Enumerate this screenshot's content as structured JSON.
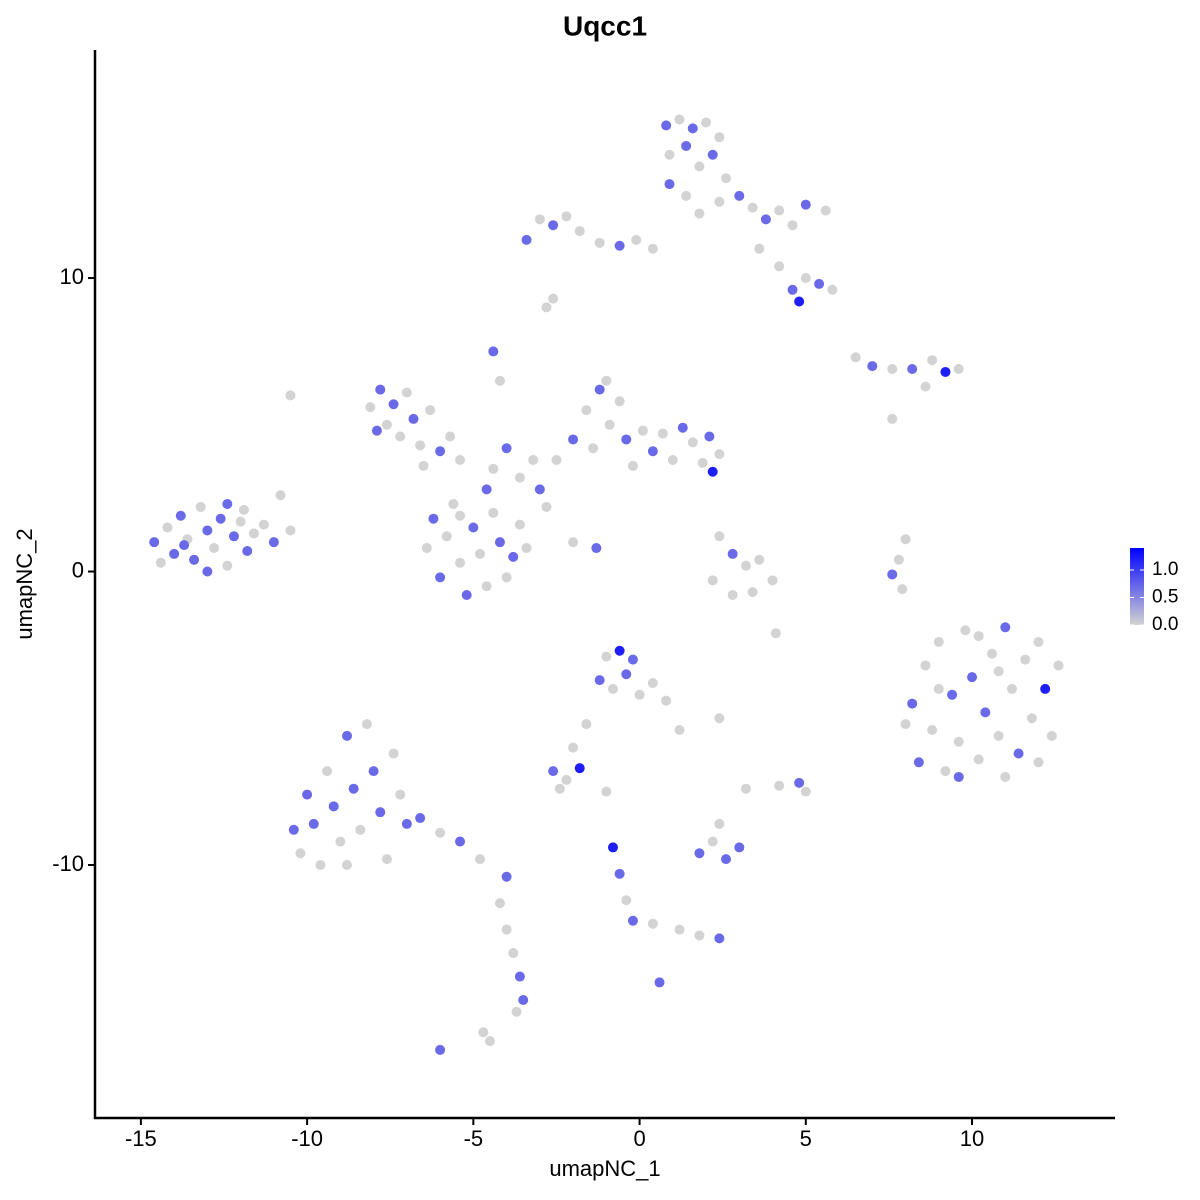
{
  "chart_data": {
    "type": "scatter",
    "title": "Uqcc1",
    "xlabel": "umapNC_1",
    "ylabel": "umapNC_2",
    "xlim": [
      -16.38,
      14.3
    ],
    "ylim": [
      -18.62,
      17.77
    ],
    "xticks": [
      -15,
      -10,
      -5,
      0,
      5,
      10
    ],
    "yticks": [
      -10,
      0,
      10
    ],
    "color_low": "#d3d3d3",
    "color_high": "#0000ff",
    "colorbar_lim": [
      0,
      1.4
    ],
    "colorbar_ticks": [
      {
        "value": 0,
        "label": "0.0"
      },
      {
        "value": 0.5,
        "label": "0.5"
      },
      {
        "value": 1,
        "label": "1.0"
      }
    ],
    "x": [
      -14.6,
      -14.2,
      -14.0,
      -13.8,
      -13.6,
      -13.4,
      -13.2,
      -13.0,
      -12.8,
      -12.6,
      -12.4,
      -12.2,
      -12.0,
      -11.8,
      -11.6,
      -11.3,
      -11.0,
      -10.8,
      -10.5,
      -14.4,
      -13.0,
      -12.4,
      -11.9,
      -13.7,
      -8.1,
      -7.8,
      -7.6,
      -7.4,
      -7.2,
      -7.0,
      -6.8,
      -6.6,
      -6.3,
      -6.0,
      -5.7,
      -5.4,
      -7.9,
      -6.5,
      -6.4,
      -6.2,
      -6.0,
      -5.8,
      -5.6,
      -5.4,
      -5.2,
      -5.0,
      -4.8,
      -4.6,
      -4.4,
      -4.2,
      -4.0,
      -3.8,
      -3.6,
      -3.4,
      -5.4,
      -4.6,
      -4.4,
      -4.0,
      -3.6,
      -3.2,
      -3.0,
      -4.2,
      -4.4,
      -2.8,
      -2.0,
      -1.3,
      -2.5,
      -2.0,
      -1.6,
      -1.4,
      -1.2,
      -0.9,
      -0.6,
      -0.4,
      -0.2,
      0.1,
      0.4,
      0.7,
      1.0,
      1.3,
      1.6,
      1.9,
      2.1,
      2.4,
      2.2,
      -1.0,
      0.8,
      1.2,
      1.6,
      2.0,
      2.4,
      0.9,
      1.4,
      1.8,
      2.2,
      0.9,
      1.4,
      1.8,
      2.4,
      2.6,
      3.0,
      3.4,
      3.8,
      4.2,
      4.6,
      5.0,
      5.6,
      3.6,
      4.2,
      4.6,
      5.0,
      5.4,
      5.8,
      4.8,
      -3.4,
      -3.0,
      -2.6,
      -2.2,
      -1.8,
      -1.2,
      -0.6,
      -0.1,
      0.4,
      -2.8,
      6.5,
      7.0,
      7.6,
      8.2,
      8.8,
      9.2,
      9.6,
      8.6,
      2.4,
      2.8,
      3.2,
      3.6,
      4.0,
      2.2,
      2.8,
      3.4,
      8.0,
      7.8,
      7.6,
      7.9,
      8.2,
      8.4,
      8.6,
      8.8,
      9.0,
      9.2,
      9.4,
      9.6,
      9.8,
      10.0,
      10.2,
      10.4,
      10.6,
      10.8,
      11.0,
      11.2,
      11.4,
      11.6,
      11.8,
      12.0,
      12.2,
      12.4,
      12.6,
      9.0,
      10.2,
      11.0,
      12.0,
      9.6,
      10.8,
      8.0,
      -10.4,
      -10.2,
      -10.0,
      -9.8,
      -9.6,
      -9.4,
      -9.2,
      -9.0,
      -8.8,
      -8.6,
      -8.4,
      -8.2,
      -8.0,
      -7.8,
      -7.6,
      -7.4,
      -7.2,
      -7.0,
      -8.8,
      -6.6,
      -6.0,
      -5.4,
      -4.8,
      -4.0,
      -4.2,
      -4.0,
      -3.8,
      -3.6,
      -3.5,
      -3.7,
      -6.0,
      -4.7,
      -1.0,
      -0.6,
      -0.2,
      -1.2,
      -0.8,
      -0.4,
      0.0,
      0.4,
      0.8,
      1.2,
      -1.6,
      -2.0,
      -2.6,
      -2.2,
      -1.8,
      -2.4,
      -1.0,
      1.8,
      2.2,
      2.6,
      3.0,
      2.4,
      3.2,
      -0.8,
      -0.6,
      -0.4,
      -0.2,
      0.4,
      1.2,
      1.8,
      2.4,
      4.8,
      5.0,
      4.2,
      0.6,
      2.4,
      -10.5,
      -2.6,
      7.6,
      4.1,
      -4.5
    ],
    "y": [
      1.0,
      1.5,
      0.6,
      1.9,
      1.1,
      0.4,
      2.2,
      1.4,
      0.8,
      1.8,
      0.2,
      1.2,
      1.7,
      0.7,
      1.3,
      1.6,
      1.0,
      2.6,
      1.4,
      0.3,
      0.0,
      2.3,
      2.1,
      0.9,
      5.6,
      6.2,
      5.0,
      5.7,
      4.6,
      6.1,
      5.2,
      4.3,
      5.5,
      4.1,
      4.6,
      3.8,
      4.8,
      3.6,
      0.8,
      1.8,
      -0.2,
      1.2,
      2.3,
      0.3,
      -0.8,
      1.5,
      0.6,
      -0.5,
      2.0,
      1.0,
      -0.2,
      0.5,
      1.6,
      0.8,
      1.9,
      2.8,
      3.5,
      4.2,
      3.2,
      3.8,
      2.8,
      6.5,
      7.5,
      2.2,
      1.0,
      0.8,
      3.8,
      4.5,
      5.5,
      4.2,
      6.2,
      5.0,
      5.8,
      4.5,
      3.6,
      4.8,
      4.1,
      4.7,
      3.8,
      4.9,
      4.4,
      3.7,
      4.6,
      4.0,
      3.4,
      6.5,
      15.2,
      15.4,
      15.1,
      15.3,
      14.8,
      14.2,
      14.5,
      13.8,
      14.2,
      13.2,
      12.8,
      12.2,
      12.6,
      13.4,
      12.8,
      12.4,
      12.0,
      12.3,
      11.8,
      12.5,
      12.3,
      11.0,
      10.4,
      9.6,
      10.0,
      9.8,
      9.6,
      9.2,
      11.3,
      12.0,
      11.8,
      12.1,
      11.6,
      11.2,
      11.1,
      11.3,
      11.0,
      9.0,
      7.3,
      7.0,
      6.9,
      6.9,
      7.2,
      6.8,
      6.9,
      6.3,
      1.2,
      0.6,
      0.2,
      0.4,
      -0.3,
      -0.3,
      -0.8,
      -0.7,
      1.1,
      0.4,
      -0.1,
      -0.6,
      -4.5,
      -6.5,
      -3.2,
      -5.4,
      -2.4,
      -6.8,
      -4.2,
      -5.8,
      -2.0,
      -3.6,
      -6.4,
      -4.8,
      -2.8,
      -5.6,
      -1.9,
      -4.0,
      -6.2,
      -3.0,
      -5.0,
      -2.4,
      -4.0,
      -5.6,
      -3.2,
      -4.0,
      -2.2,
      -7.0,
      -6.5,
      -7.0,
      -3.4,
      -5.2,
      -8.8,
      -9.6,
      -7.6,
      -8.6,
      -10.0,
      -6.8,
      -8.0,
      -9.2,
      -5.6,
      -7.4,
      -8.8,
      -5.2,
      -6.8,
      -8.2,
      -9.8,
      -6.2,
      -7.6,
      -8.6,
      -10.0,
      -8.4,
      -8.9,
      -9.2,
      -9.8,
      -10.4,
      -11.3,
      -12.2,
      -13.0,
      -13.8,
      -14.6,
      -15.0,
      -16.3,
      -15.7,
      -2.9,
      -2.7,
      -3.0,
      -3.7,
      -4.0,
      -3.5,
      -4.2,
      -3.8,
      -4.4,
      -5.4,
      -5.2,
      -6.0,
      -6.8,
      -7.1,
      -6.7,
      -7.4,
      -7.5,
      -9.6,
      -9.2,
      -9.8,
      -9.4,
      -8.6,
      -7.4,
      -9.4,
      -10.3,
      -11.2,
      -11.9,
      -12.0,
      -12.2,
      -12.4,
      -12.5,
      -7.2,
      -7.5,
      -7.3,
      -14.0,
      -5.0,
      6.0,
      9.3,
      5.2,
      -2.1,
      -16.0
    ],
    "values": [
      0.7,
      0,
      0.7,
      0.7,
      0,
      0.7,
      0,
      0.7,
      0,
      0.7,
      0,
      0.7,
      0,
      0.7,
      0,
      0,
      0.7,
      0,
      0,
      0,
      0.7,
      0.7,
      0,
      0.7,
      0,
      0.7,
      0,
      0.7,
      0,
      0,
      0.7,
      0,
      0,
      0.7,
      0,
      0,
      0.7,
      0,
      0,
      0.7,
      0.7,
      0,
      0,
      0,
      0.7,
      0.7,
      0,
      0,
      0,
      0.7,
      0,
      0.7,
      0,
      0,
      0,
      0.7,
      0,
      0.7,
      0,
      0,
      0.7,
      0,
      0.7,
      0,
      0,
      0.7,
      0,
      0.7,
      0,
      0,
      0.7,
      0,
      0,
      0.7,
      0,
      0,
      0.7,
      0,
      0,
      0.7,
      0,
      0,
      0.7,
      0,
      1.2,
      0,
      0.7,
      0,
      0.7,
      0,
      0,
      0,
      0.7,
      0,
      0.7,
      0.7,
      0,
      0,
      0,
      0,
      0.7,
      0,
      0.7,
      0,
      0,
      0.7,
      0,
      0,
      0,
      0.7,
      0,
      0.7,
      0,
      1.2,
      0.7,
      0,
      0.7,
      0,
      0,
      0,
      0.7,
      0,
      0,
      0,
      0,
      0.7,
      0,
      0.7,
      0,
      1.2,
      0,
      0,
      0,
      0.7,
      0,
      0,
      0,
      0,
      0,
      0,
      0,
      0,
      0.7,
      0,
      0.7,
      0.7,
      0,
      0,
      0,
      0,
      0.7,
      0,
      0,
      0.7,
      0,
      0.7,
      0,
      0,
      0.7,
      0,
      0.7,
      0,
      0,
      0,
      1.2,
      0,
      0,
      0,
      0,
      0,
      0,
      0.7,
      0,
      0,
      0.7,
      0,
      0.7,
      0.7,
      0,
      0,
      0.7,
      0,
      0.7,
      0.7,
      0,
      0,
      0.7,
      0.7,
      0,
      0,
      0,
      0.7,
      0,
      0.7,
      0,
      0.7,
      0,
      0.7,
      0,
      0,
      0,
      0.7,
      0.7,
      0,
      0.7,
      0,
      0,
      1.2,
      0.7,
      0.7,
      0,
      0.7,
      0,
      0,
      0,
      0,
      0,
      0,
      0.7,
      0,
      1.2,
      0,
      0,
      0.7,
      0,
      0.7,
      0.7,
      0,
      0,
      1.2,
      0.7,
      0,
      0.7,
      0,
      0,
      0,
      0.7,
      0.7,
      0,
      0,
      0.7,
      0,
      0,
      0,
      0,
      0,
      0
    ]
  }
}
